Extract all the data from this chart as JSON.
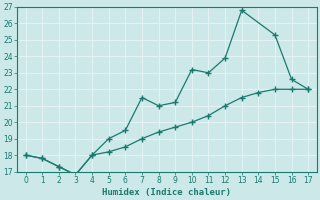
{
  "xlabel": "Humidex (Indice chaleur)",
  "line1_x": [
    0,
    1,
    2,
    3,
    4,
    5,
    6,
    7,
    8,
    9,
    10,
    11,
    12,
    13,
    15,
    16,
    17
  ],
  "line1_y": [
    18.0,
    17.8,
    17.3,
    16.8,
    18.0,
    19.0,
    19.5,
    21.5,
    21.0,
    21.2,
    23.2,
    23.0,
    23.9,
    26.8,
    25.3,
    22.6,
    22.0
  ],
  "line2_x": [
    0,
    1,
    2,
    3,
    4,
    5,
    6,
    7,
    8,
    9,
    10,
    11,
    12,
    13,
    14,
    15,
    16,
    17
  ],
  "line2_y": [
    18.0,
    17.8,
    17.3,
    16.8,
    18.0,
    18.2,
    18.5,
    19.0,
    19.4,
    19.7,
    20.0,
    20.4,
    21.0,
    21.5,
    21.8,
    22.0,
    22.0,
    22.0
  ],
  "line_color": "#1a7a6e",
  "bg_color": "#cce8e8",
  "grid_color": "#e8f4f4",
  "ylim": [
    17,
    27
  ],
  "xlim": [
    -0.5,
    17.5
  ],
  "yticks": [
    17,
    18,
    19,
    20,
    21,
    22,
    23,
    24,
    25,
    26,
    27
  ],
  "xticks": [
    0,
    1,
    2,
    3,
    4,
    5,
    6,
    7,
    8,
    9,
    10,
    11,
    12,
    13,
    14,
    15,
    16,
    17
  ],
  "marker": "+",
  "markersize": 4,
  "linewidth": 0.9,
  "tick_fontsize": 5.5,
  "xlabel_fontsize": 6.5
}
